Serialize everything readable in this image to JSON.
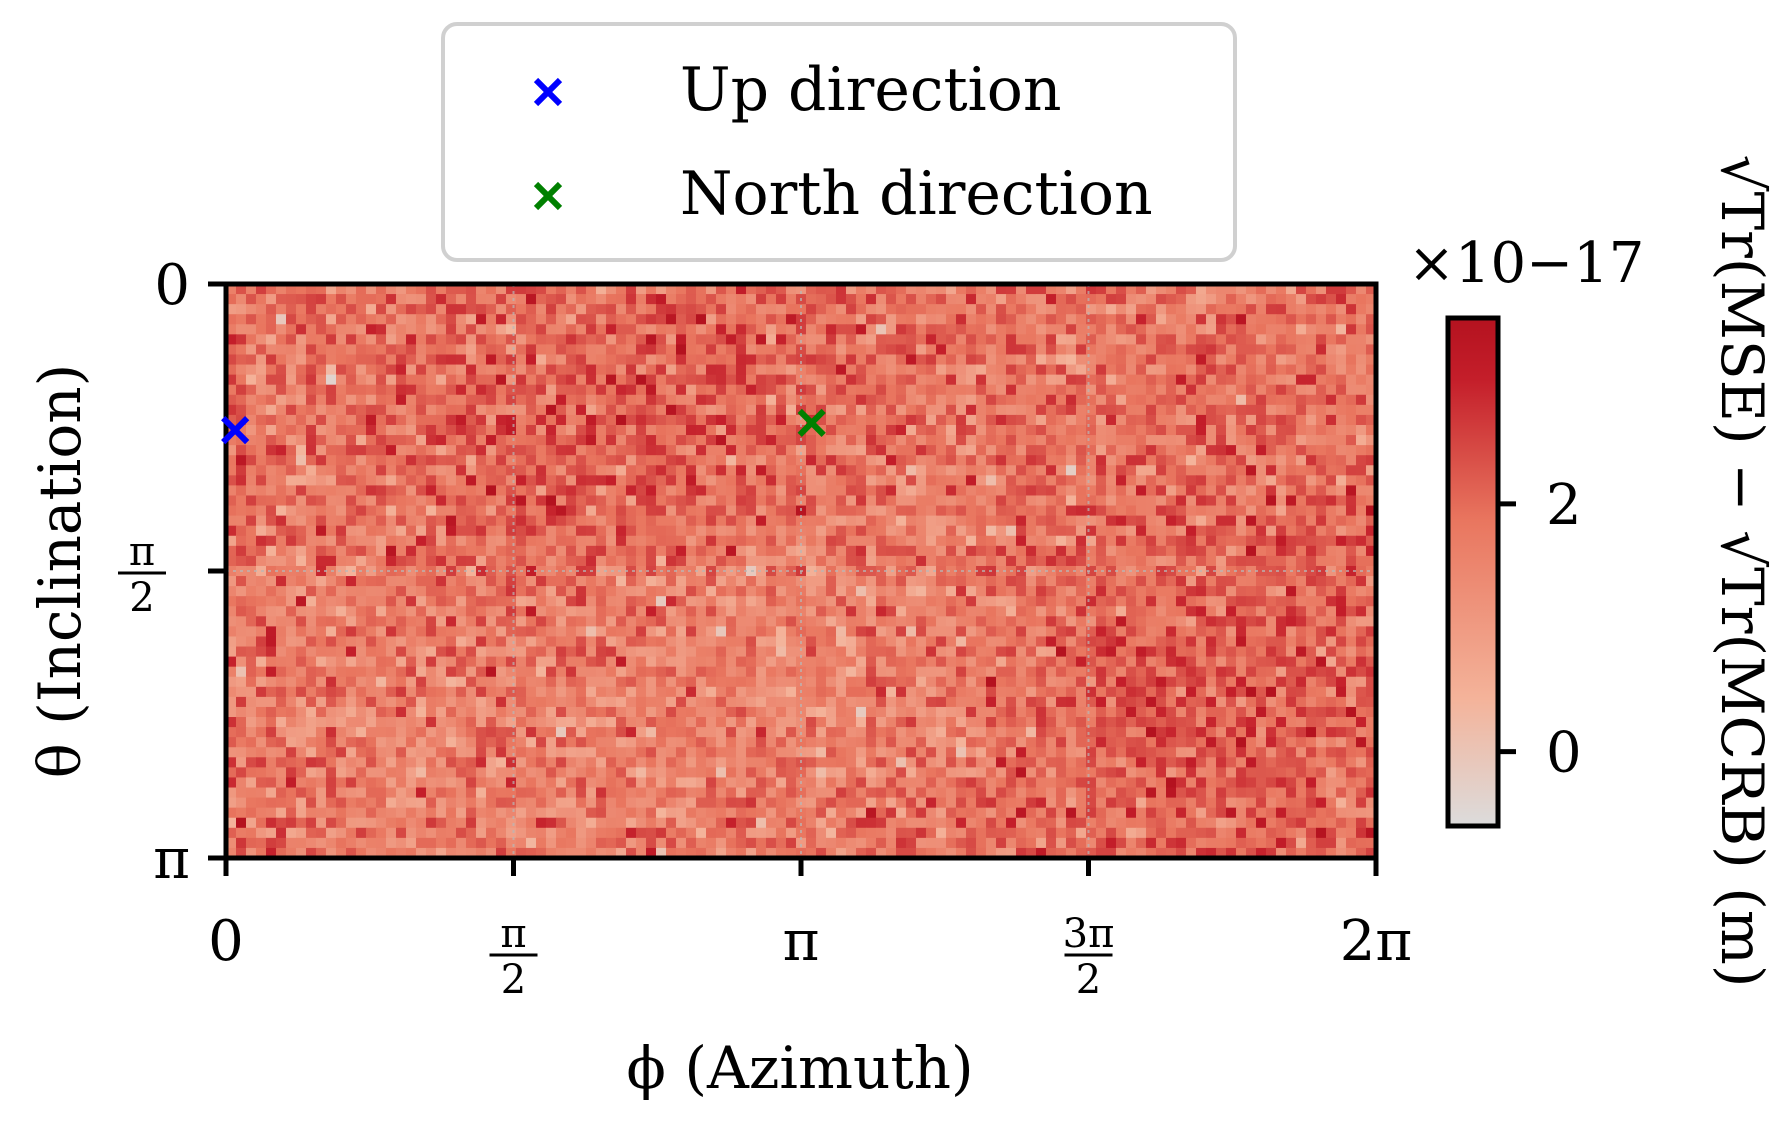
{
  "chart_data": {
    "type": "heatmap",
    "xlabel": "ϕ (Azimuth)",
    "ylabel": "θ (Inclination)",
    "xlim": [
      0,
      6.2832
    ],
    "ylim": [
      0,
      3.1416
    ],
    "y_inverted": true,
    "grid": true,
    "x_ticks": [
      {
        "value": 0,
        "label": "0"
      },
      {
        "value": 1.5708,
        "label": "π/2"
      },
      {
        "value": 3.1416,
        "label": "π"
      },
      {
        "value": 4.7124,
        "label": "3π/2"
      },
      {
        "value": 6.2832,
        "label": "2π"
      }
    ],
    "y_ticks": [
      {
        "value": 0,
        "label": "0"
      },
      {
        "value": 1.5708,
        "label": "π/2"
      },
      {
        "value": 3.1416,
        "label": "π"
      }
    ],
    "colorbar": {
      "label": "√Tr(MSE) − √Tr(MCRB) (m)",
      "multiplier": "×10−17",
      "range": [
        -0.6,
        3.5
      ],
      "ticks": [
        {
          "value": 0,
          "label": "0"
        },
        {
          "value": 2,
          "label": "2"
        }
      ],
      "colors": [
        "#dcdcdc",
        "#f4b39a",
        "#e9765f",
        "#c41e2a",
        "#b4121f"
      ]
    },
    "field": {
      "description_values": "noisy field, mean about 1.8e-17 m, slightly higher near phi≈2.3 theta≈0.9 and phi≈5.2 theta≈2.2, lower near phi≈3.2 theta≈1.9",
      "mean": 1.8,
      "noise_std": 0.55,
      "bumps": [
        {
          "phi": 2.3,
          "theta": 0.9,
          "amp": 0.45
        },
        {
          "phi": 5.3,
          "theta": 2.2,
          "amp": 0.45
        },
        {
          "phi": 3.3,
          "theta": 1.9,
          "amp": -0.4
        },
        {
          "phi": 1.2,
          "theta": 2.4,
          "amp": -0.25
        }
      ]
    },
    "markers": [
      {
        "name": "Up direction",
        "phi": 0.05,
        "theta": 0.8,
        "color": "#0000ff"
      },
      {
        "name": "North direction",
        "phi": 3.2,
        "theta": 0.76,
        "color": "#008000"
      }
    ],
    "legend": {
      "position": "top-center",
      "entries": [
        "Up direction",
        "North direction"
      ]
    }
  }
}
